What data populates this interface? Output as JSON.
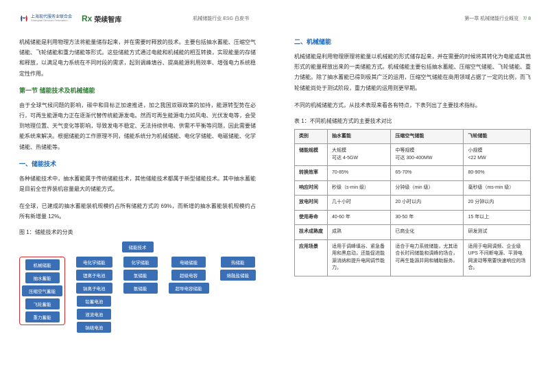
{
  "header": {
    "logo1": {
      "top": "上海现代服务业联合会",
      "bottom": "Shanghai Services Federation"
    },
    "logo2": {
      "mark": "Rx",
      "name": "荣续智库"
    },
    "doc_title": "机械储能行业 ESG 白皮书",
    "chapter": "第一章  机械储能行业概览",
    "page": "7/ 8"
  },
  "left": {
    "p1": "机械储能是利用物理方法将能量储存起来，并在需要时释放的技术。主要包括抽水蓄能、压缩空气储能、飞轮储能和重力储能等形式。这些储能方式通过电能和机械能的相互转换，实现能量的存储和释放，以满足电力系统在不同时段的需求，起到调峰填谷、提高能源利用效率、增强电力系统稳定性作用。",
    "section1_title": "第一节  储能技术及机械储能",
    "p2": "由于全球气候问题的影响，碳中和目标正加速推进，加之我国双碳政策的加持，能源转型势在必行，可再生能源电力正在逐渐代替传统能源发电。然而可再生能源电力如风电、光伏发电等，会受到地理位置、天气变化等影响，导致发电不稳定、无法持续供电、供需不平衡等问题，因此需要储能系统来解决。根据储能的工作原理不同，储能系统分为机械储能、电化学储能、电磁储能、化学储能、热储能等。",
    "sub1_title": "一、储能技术",
    "p3": "各种储能技术中，抽水蓄能属于传统储能技术，其他储能技术都属于新型储能技术。其中抽水蓄能是目前全世界装机容量最大的储能方式。",
    "p4": "在全球，已建成的抽水蓄能装机规模约占所有储能方式的 69%，而新增的抽水蓄能装机规模约占所有新增量 12%。",
    "fig1_caption": "图 1：储能技术的分类",
    "tree": {
      "root": "储能技术",
      "cats": [
        {
          "name": "机械储能",
          "children": [
            "抽水蓄能",
            "压缩空气蓄能",
            "飞轮蓄能",
            "重力蓄能"
          ],
          "highlighted": true
        },
        {
          "name": "电化学储能",
          "children": [
            "锂离子电池",
            "钠离子电池",
            "铅蓄电池",
            "液流电池",
            "钠硫电池"
          ]
        },
        {
          "name": "化学储能",
          "children": [
            "氢储能",
            "氨储能"
          ]
        },
        {
          "name": "电磁储能",
          "children": [
            "超级电容",
            "超导电容储能"
          ]
        },
        {
          "name": "热储能",
          "children": [
            "熔融盐储能"
          ]
        }
      ],
      "colors": {
        "node_bg": "#3b6fb5",
        "node_fg": "#ffffff",
        "highlight_border": "#d32f2f",
        "connector": "#3b6fb5"
      }
    }
  },
  "right": {
    "sub2_title": "二、机械储能",
    "p5": "机械储能是利用物理原理将能量以机械能的形式储存起来，并在需要的时候将其转化为电能或其他形式的能量释放出来的一类储能方式。机械储能主要包括抽水蓄能、压缩空气储能、飞轮储能、重力储能。除了抽水蓄能已得到极其广泛的运用，压缩空气储能在商用领域占据了一定的比例，而飞轮储能尚处于测试阶段，重力储能的运用则更早期。",
    "p6": "不同的机械储能方式，从技术表现来看各有特点，下表列出了主要技术指标。",
    "table_caption": "表 1：不同机械储能方式的主要技术对比",
    "table": {
      "columns": [
        "类别",
        "抽水蓄能",
        "压缩空气储能",
        "飞轮储能"
      ],
      "rows": [
        {
          "label": "储能规模",
          "c1": "大规模\n可达 4-5GW",
          "c2": "中等规模\n可达 300-400MW",
          "c3": "小规模\n<22 MW"
        },
        {
          "label": "转换效率",
          "c1": "70-85%",
          "c2": "65-70%",
          "c3": "80-90%"
        },
        {
          "label": "响应时间",
          "c1": "秒级（s-min 级）",
          "c2": "分钟级（min 级）",
          "c3": "毫秒级（ms-min 级）"
        },
        {
          "label": "放电时间",
          "c1": "几十小时",
          "c2": "20 小时以内",
          "c3": "20 分钟以内"
        },
        {
          "label": "使用寿命",
          "c1": "40-60 年",
          "c2": "30-50 年",
          "c3": "15 年以上"
        },
        {
          "label": "技术成熟度",
          "c1": "成熟",
          "c2": "已商业化",
          "c3": "研发测试"
        },
        {
          "label": "应用场景",
          "c1": "适用于调峰填谷、紧急备用和黑启动，还能促进能源消纳和提升电网调节能力。",
          "c2": "适合于电力系统储能，尤其适合长时间储能和调峰的场合，可再生能源并网和辅助服务。",
          "c3": "适用于电网调频、企业级 UPS 不间断电源、平滑电网波动等需要快速响应的场合。"
        }
      ],
      "style": {
        "border_color": "#999999",
        "header_bg": "#f5f5f5",
        "font_size": 7
      }
    }
  },
  "colors": {
    "section_green": "#2e7d32",
    "subsection_blue": "#1565c0",
    "text": "#333333",
    "bg": "#ffffff"
  }
}
